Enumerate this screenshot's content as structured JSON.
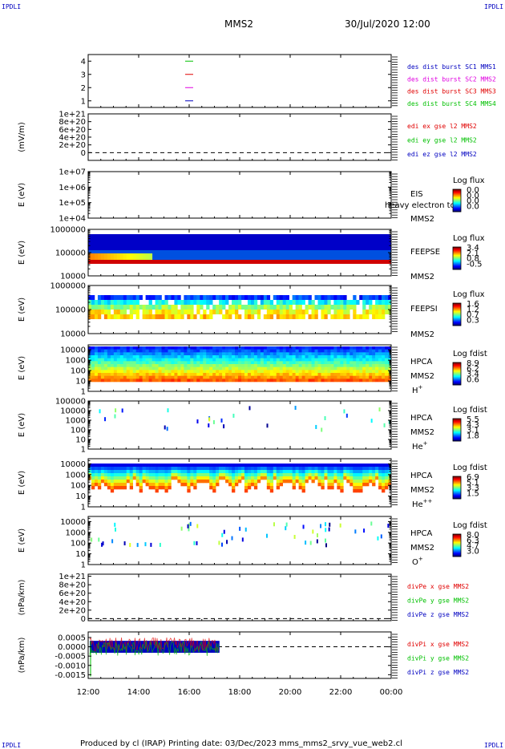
{
  "header": {
    "corner_tl": "IPDLI",
    "corner_tr": "IPDLI",
    "corner_bl": "IPDLI",
    "corner_br": "IPDLI",
    "mission": "MMS2",
    "datetime": "30/Jul/2020 12:00"
  },
  "footer": {
    "text": "Produced by cl (IRAP)   Printing date: 03/Dec/2023   mms_mms2_srvy_vue_web2.cl"
  },
  "colors": {
    "frame": "#000000",
    "red": "#e00000",
    "green": "#00c000",
    "blue": "#0000c0",
    "magenta": "#e000e0"
  },
  "chart_data": [
    {
      "panel": "burst",
      "type": "line",
      "yticks": [
        "1",
        "2",
        "3",
        "4"
      ],
      "ylim": [
        0.5,
        4.5
      ],
      "legend": [
        {
          "text": "des dist burst SC1 MMS1",
          "color": "#0000c0"
        },
        {
          "text": "des dist burst SC2 MMS2",
          "color": "#e000e0"
        },
        {
          "text": "des dist burst SC3 MMS3",
          "color": "#e00000"
        },
        {
          "text": "des dist burst SC4 MMS4",
          "color": "#00c000"
        }
      ],
      "markers": [
        {
          "time_h": 16.0,
          "level": 4,
          "color": "#00c000"
        },
        {
          "time_h": 16.0,
          "level": 3,
          "color": "#e00000"
        },
        {
          "time_h": 16.0,
          "level": 2,
          "color": "#e000e0"
        },
        {
          "time_h": 16.0,
          "level": 1,
          "color": "#0000c0"
        }
      ]
    },
    {
      "panel": "edi",
      "type": "line",
      "ylabel": "(mV/m)",
      "yticks": [
        "0",
        "2e+20",
        "4e+20",
        "6e+20",
        "8e+20",
        "1e+21"
      ],
      "ylim": [
        -2e+20,
        1e+21
      ],
      "legend": [
        {
          "text": "edi ex gse l2 MMS2",
          "color": "#e00000"
        },
        {
          "text": "edi ey gse l2 MMS2",
          "color": "#00c000"
        },
        {
          "text": "edi ez gse l2 MMS2",
          "color": "#0000c0"
        }
      ]
    },
    {
      "panel": "eis",
      "type": "heatmap",
      "ylabel": "E (eV)",
      "yticks": [
        "1e+04",
        "1e+05",
        "1e+06",
        "1e+07"
      ],
      "yscale": "log",
      "ylim": [
        10000.0,
        10000000.0
      ],
      "instrument": "EIS",
      "subtitle": "heavy electron to",
      "spacecraft": "MMS2",
      "colorbar_title": "Log flux",
      "colorbar_ticks": [
        "0.0",
        "0.0",
        "0.0",
        "0.0"
      ]
    },
    {
      "panel": "feepse",
      "type": "heatmap",
      "ylabel": "E (eV)",
      "yticks": [
        "10000",
        "100000",
        "1000000"
      ],
      "yscale": "log",
      "ylim": [
        10000.0,
        1000000.0
      ],
      "instrument": "FEEPSE",
      "spacecraft": "MMS2",
      "colorbar_title": "Log flux",
      "colorbar_ticks": [
        "3.4",
        "2.1",
        "0.8",
        "-0.5"
      ]
    },
    {
      "panel": "feepsi",
      "type": "heatmap",
      "ylabel": "E (eV)",
      "yticks": [
        "10000",
        "100000",
        "1000000"
      ],
      "yscale": "log",
      "ylim": [
        10000.0,
        1000000.0
      ],
      "instrument": "FEEPSI",
      "spacecraft": "MMS2",
      "colorbar_title": "Log flux",
      "colorbar_ticks": [
        "1.6",
        "1.2",
        "0.7",
        "0.3"
      ]
    },
    {
      "panel": "hpca_h",
      "type": "heatmap",
      "ylabel": "E (eV)",
      "yticks": [
        "1",
        "10",
        "100",
        "1000",
        "10000"
      ],
      "yscale": "log",
      "ylim": [
        1,
        30000
      ],
      "instrument": "HPCA",
      "spacecraft": "MMS2",
      "species": "H",
      "species_sup": "+",
      "colorbar_title": "Log fdist",
      "colorbar_ticks": [
        "8.9",
        "6.2",
        "3.4",
        "0.6"
      ]
    },
    {
      "panel": "hpca_he",
      "type": "heatmap",
      "ylabel": "E (eV)",
      "yticks": [
        "1",
        "10",
        "100",
        "1000",
        "10000",
        "100000"
      ],
      "yscale": "log",
      "ylim": [
        1,
        100000
      ],
      "instrument": "HPCA",
      "spacecraft": "MMS2",
      "species": "He",
      "species_sup": "+",
      "colorbar_title": "Log fdist",
      "colorbar_ticks": [
        "5.5",
        "4.3",
        "3.1",
        "1.8"
      ]
    },
    {
      "panel": "hpca_he2",
      "type": "heatmap",
      "ylabel": "E (eV)",
      "yticks": [
        "1",
        "10",
        "100",
        "1000",
        "10000"
      ],
      "yscale": "log",
      "ylim": [
        1,
        30000
      ],
      "instrument": "HPCA",
      "spacecraft": "MMS2",
      "species": "He",
      "species_sup": "++",
      "colorbar_title": "Log fdist",
      "colorbar_ticks": [
        "6.9",
        "5.1",
        "3.3",
        "1.5"
      ]
    },
    {
      "panel": "hpca_o",
      "type": "heatmap",
      "ylabel": "E (eV)",
      "yticks": [
        "1",
        "10",
        "100",
        "1000",
        "10000"
      ],
      "yscale": "log",
      "ylim": [
        1,
        30000
      ],
      "instrument": "HPCA",
      "spacecraft": "MMS2",
      "species": "O",
      "species_sup": "+",
      "colorbar_title": "Log fdist",
      "colorbar_ticks": [
        "8.0",
        "6.3",
        "4.7",
        "3.0"
      ]
    },
    {
      "panel": "divpe",
      "type": "line",
      "ylabel": "(nPa/km)",
      "yticks": [
        "0",
        "2e+20",
        "4e+20",
        "6e+20",
        "8e+20",
        "1e+21"
      ],
      "ylim": [
        -5e+19,
        1.05e+21
      ],
      "legend": [
        {
          "text": "divPe x gse MMS2",
          "color": "#e00000"
        },
        {
          "text": "divPe y gse MMS2",
          "color": "#00c000"
        },
        {
          "text": "divPe z gse MMS2",
          "color": "#0000c0"
        }
      ]
    },
    {
      "panel": "divpi",
      "type": "line",
      "ylabel": "(nPa/km)",
      "yticks": [
        "-0.0015",
        "-0.0010",
        "-0.0005",
        "0.0000",
        "0.0005"
      ],
      "ylim": [
        -0.0017,
        0.0008
      ],
      "legend": [
        {
          "text": "divPi x gse MMS2",
          "color": "#e00000"
        },
        {
          "text": "divPi y gse MMS2",
          "color": "#00c000"
        },
        {
          "text": "divPi z gse MMS2",
          "color": "#0000c0"
        }
      ],
      "data_end_h": 17.2
    }
  ],
  "xaxis": {
    "ticks": [
      "12:00",
      "14:00",
      "16:00",
      "18:00",
      "20:00",
      "22:00",
      "00:00"
    ],
    "tick_hours": [
      12,
      14,
      16,
      18,
      20,
      22,
      24
    ],
    "range_h": [
      12,
      24
    ]
  }
}
